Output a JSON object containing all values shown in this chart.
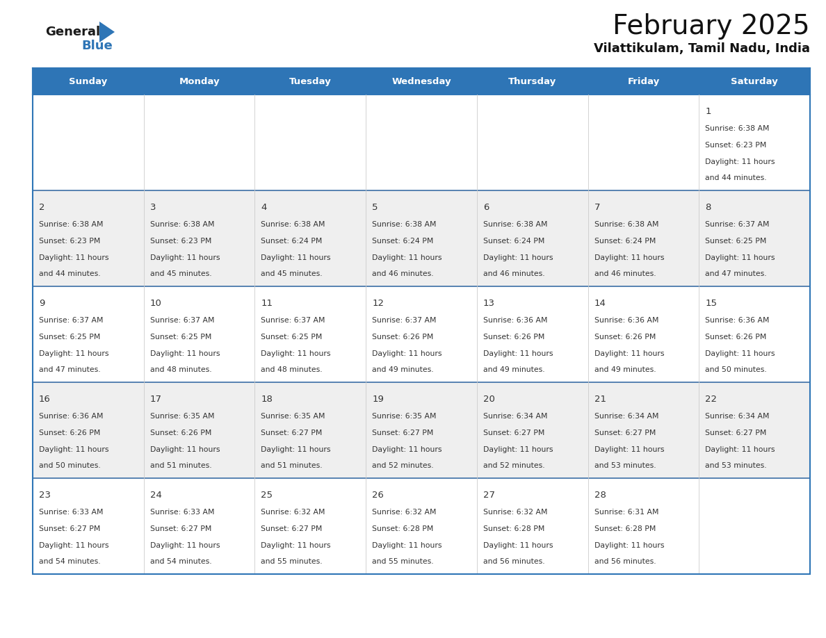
{
  "title": "February 2025",
  "subtitle": "Vilattikulam, Tamil Nadu, India",
  "header_bg": "#2E75B6",
  "header_text_color": "#FFFFFF",
  "days_of_week": [
    "Sunday",
    "Monday",
    "Tuesday",
    "Wednesday",
    "Thursday",
    "Friday",
    "Saturday"
  ],
  "cell_bg_white": "#FFFFFF",
  "cell_bg_gray": "#EFEFEF",
  "border_color": "#2E75B6",
  "row_line_color": "#3B6EA5",
  "day_number_color": "#333333",
  "info_text_color": "#333333",
  "logo_general_color": "#1a1a1a",
  "logo_blue_color": "#2E75B6",
  "calendar_data": [
    [
      null,
      null,
      null,
      null,
      null,
      null,
      1
    ],
    [
      2,
      3,
      4,
      5,
      6,
      7,
      8
    ],
    [
      9,
      10,
      11,
      12,
      13,
      14,
      15
    ],
    [
      16,
      17,
      18,
      19,
      20,
      21,
      22
    ],
    [
      23,
      24,
      25,
      26,
      27,
      28,
      null
    ]
  ],
  "sunrise_data": {
    "1": "6:38 AM",
    "2": "6:38 AM",
    "3": "6:38 AM",
    "4": "6:38 AM",
    "5": "6:38 AM",
    "6": "6:38 AM",
    "7": "6:38 AM",
    "8": "6:37 AM",
    "9": "6:37 AM",
    "10": "6:37 AM",
    "11": "6:37 AM",
    "12": "6:37 AM",
    "13": "6:36 AM",
    "14": "6:36 AM",
    "15": "6:36 AM",
    "16": "6:36 AM",
    "17": "6:35 AM",
    "18": "6:35 AM",
    "19": "6:35 AM",
    "20": "6:34 AM",
    "21": "6:34 AM",
    "22": "6:34 AM",
    "23": "6:33 AM",
    "24": "6:33 AM",
    "25": "6:32 AM",
    "26": "6:32 AM",
    "27": "6:32 AM",
    "28": "6:31 AM"
  },
  "sunset_data": {
    "1": "6:23 PM",
    "2": "6:23 PM",
    "3": "6:23 PM",
    "4": "6:24 PM",
    "5": "6:24 PM",
    "6": "6:24 PM",
    "7": "6:24 PM",
    "8": "6:25 PM",
    "9": "6:25 PM",
    "10": "6:25 PM",
    "11": "6:25 PM",
    "12": "6:26 PM",
    "13": "6:26 PM",
    "14": "6:26 PM",
    "15": "6:26 PM",
    "16": "6:26 PM",
    "17": "6:26 PM",
    "18": "6:27 PM",
    "19": "6:27 PM",
    "20": "6:27 PM",
    "21": "6:27 PM",
    "22": "6:27 PM",
    "23": "6:27 PM",
    "24": "6:27 PM",
    "25": "6:27 PM",
    "26": "6:28 PM",
    "27": "6:28 PM",
    "28": "6:28 PM"
  },
  "daylight_data": {
    "1": "11 hours\nand 44 minutes.",
    "2": "11 hours\nand 44 minutes.",
    "3": "11 hours\nand 45 minutes.",
    "4": "11 hours\nand 45 minutes.",
    "5": "11 hours\nand 46 minutes.",
    "6": "11 hours\nand 46 minutes.",
    "7": "11 hours\nand 46 minutes.",
    "8": "11 hours\nand 47 minutes.",
    "9": "11 hours\nand 47 minutes.",
    "10": "11 hours\nand 48 minutes.",
    "11": "11 hours\nand 48 minutes.",
    "12": "11 hours\nand 49 minutes.",
    "13": "11 hours\nand 49 minutes.",
    "14": "11 hours\nand 49 minutes.",
    "15": "11 hours\nand 50 minutes.",
    "16": "11 hours\nand 50 minutes.",
    "17": "11 hours\nand 51 minutes.",
    "18": "11 hours\nand 51 minutes.",
    "19": "11 hours\nand 52 minutes.",
    "20": "11 hours\nand 52 minutes.",
    "21": "11 hours\nand 53 minutes.",
    "22": "11 hours\nand 53 minutes.",
    "23": "11 hours\nand 54 minutes.",
    "24": "11 hours\nand 54 minutes.",
    "25": "11 hours\nand 55 minutes.",
    "26": "11 hours\nand 55 minutes.",
    "27": "11 hours\nand 56 minutes.",
    "28": "11 hours\nand 56 minutes."
  }
}
